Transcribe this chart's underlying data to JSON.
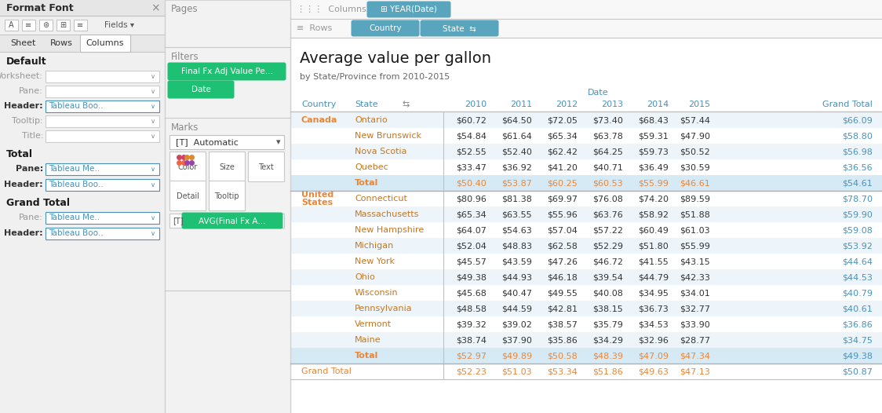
{
  "title": "Average value per gallon",
  "subtitle": "by State/Province from 2010-2015",
  "rows": [
    {
      "country": "Canada",
      "state": "Ontario",
      "vals": [
        "$60.72",
        "$64.50",
        "$72.05",
        "$73.40",
        "$68.43",
        "$57.44"
      ],
      "grand": "$66.09",
      "is_total": false,
      "is_grand": false
    },
    {
      "country": "",
      "state": "New Brunswick",
      "vals": [
        "$54.84",
        "$61.64",
        "$65.34",
        "$63.78",
        "$59.31",
        "$47.90"
      ],
      "grand": "$58.80",
      "is_total": false,
      "is_grand": false
    },
    {
      "country": "",
      "state": "Nova Scotia",
      "vals": [
        "$52.55",
        "$52.40",
        "$62.42",
        "$64.25",
        "$59.73",
        "$50.52"
      ],
      "grand": "$56.98",
      "is_total": false,
      "is_grand": false
    },
    {
      "country": "",
      "state": "Quebec",
      "vals": [
        "$33.47",
        "$36.92",
        "$41.20",
        "$40.71",
        "$36.49",
        "$30.59"
      ],
      "grand": "$36.56",
      "is_total": false,
      "is_grand": false
    },
    {
      "country": "",
      "state": "Total",
      "vals": [
        "$50.40",
        "$53.87",
        "$60.25",
        "$60.53",
        "$55.99",
        "$46.61"
      ],
      "grand": "$54.61",
      "is_total": true,
      "is_grand": false
    },
    {
      "country": "United\nStates",
      "state": "Connecticut",
      "vals": [
        "$80.96",
        "$81.38",
        "$69.97",
        "$76.08",
        "$74.20",
        "$89.59"
      ],
      "grand": "$78.70",
      "is_total": false,
      "is_grand": false
    },
    {
      "country": "",
      "state": "Massachusetts",
      "vals": [
        "$65.34",
        "$63.55",
        "$55.96",
        "$63.76",
        "$58.92",
        "$51.88"
      ],
      "grand": "$59.90",
      "is_total": false,
      "is_grand": false
    },
    {
      "country": "",
      "state": "New Hampshire",
      "vals": [
        "$64.07",
        "$54.63",
        "$57.04",
        "$57.22",
        "$60.49",
        "$61.03"
      ],
      "grand": "$59.08",
      "is_total": false,
      "is_grand": false
    },
    {
      "country": "",
      "state": "Michigan",
      "vals": [
        "$52.04",
        "$48.83",
        "$62.58",
        "$52.29",
        "$51.80",
        "$55.99"
      ],
      "grand": "$53.92",
      "is_total": false,
      "is_grand": false
    },
    {
      "country": "",
      "state": "New York",
      "vals": [
        "$45.57",
        "$43.59",
        "$47.26",
        "$46.72",
        "$41.55",
        "$43.15"
      ],
      "grand": "$44.64",
      "is_total": false,
      "is_grand": false
    },
    {
      "country": "",
      "state": "Ohio",
      "vals": [
        "$49.38",
        "$44.93",
        "$46.18",
        "$39.54",
        "$44.79",
        "$42.33"
      ],
      "grand": "$44.53",
      "is_total": false,
      "is_grand": false
    },
    {
      "country": "",
      "state": "Wisconsin",
      "vals": [
        "$45.68",
        "$40.47",
        "$49.55",
        "$40.08",
        "$34.95",
        "$34.01"
      ],
      "grand": "$40.79",
      "is_total": false,
      "is_grand": false
    },
    {
      "country": "",
      "state": "Pennsylvania",
      "vals": [
        "$48.58",
        "$44.59",
        "$42.81",
        "$38.15",
        "$36.73",
        "$32.77"
      ],
      "grand": "$40.61",
      "is_total": false,
      "is_grand": false
    },
    {
      "country": "",
      "state": "Vermont",
      "vals": [
        "$39.32",
        "$39.02",
        "$38.57",
        "$35.79",
        "$34.53",
        "$33.90"
      ],
      "grand": "$36.86",
      "is_total": false,
      "is_grand": false
    },
    {
      "country": "",
      "state": "Maine",
      "vals": [
        "$38.74",
        "$37.90",
        "$35.86",
        "$34.29",
        "$32.96",
        "$28.77"
      ],
      "grand": "$34.75",
      "is_total": false,
      "is_grand": false
    },
    {
      "country": "",
      "state": "Total",
      "vals": [
        "$52.97",
        "$49.89",
        "$50.58",
        "$48.39",
        "$47.09",
        "$47.34"
      ],
      "grand": "$49.38",
      "is_total": true,
      "is_grand": false
    },
    {
      "country": "Grand Total",
      "state": "",
      "vals": [
        "$52.23",
        "$51.03",
        "$53.34",
        "$51.86",
        "$49.63",
        "$47.13"
      ],
      "grand": "$50.87",
      "is_total": false,
      "is_grand": true
    }
  ],
  "years": [
    "2010",
    "2011",
    "2012",
    "2013",
    "2014",
    "2015"
  ],
  "orange": "#e8873a",
  "blue": "#4a90b8",
  "teal_pill": "#5aa5be",
  "green_pill": "#1ec174",
  "gray_bg": "#f0f0f0",
  "mid_bg": "#f2f2f2",
  "white": "#ffffff",
  "light_blue_row": "#edf5fb",
  "total_row_bg": "#d8ecf6",
  "header_sep": "#c8c8c8",
  "panel_div": "#d0d0d0"
}
